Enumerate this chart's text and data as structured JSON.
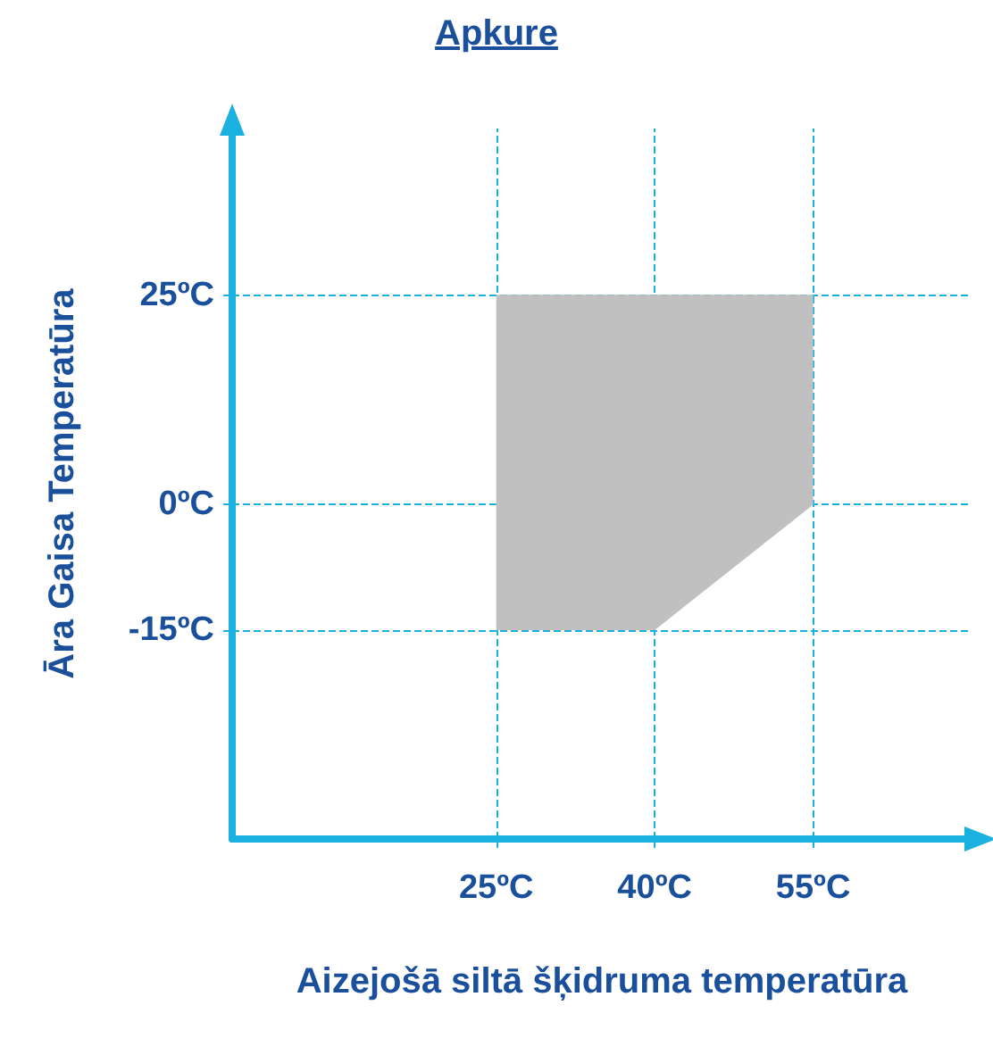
{
  "chart_data": {
    "type": "line",
    "title": "Apkure",
    "xlabel": "Aizejošā siltā šķidruma temperatūra",
    "ylabel": "Āra Gaisa Temperatūra",
    "series": [
      {
        "x": [
          25,
          40,
          55
        ],
        "values": [
          25,
          25,
          25
        ],
        "lower": [
          -15,
          -15,
          0
        ],
        "upper": [
          25,
          25,
          25
        ],
        "color": "#c0c0c0"
      }
    ],
    "xlim": [
      0,
      70
    ],
    "xticks": [
      {
        "value": 25,
        "label": "25ºC"
      },
      {
        "value": 40,
        "label": "40ºC"
      },
      {
        "value": 55,
        "label": "55ºC"
      }
    ],
    "ylim": [
      -40,
      45
    ],
    "yticks": [
      {
        "value": -15,
        "label": "-15ºC"
      },
      {
        "value": 0,
        "label": "0ºC"
      },
      {
        "value": 25,
        "label": "25ºC"
      }
    ],
    "grid": true
  }
}
